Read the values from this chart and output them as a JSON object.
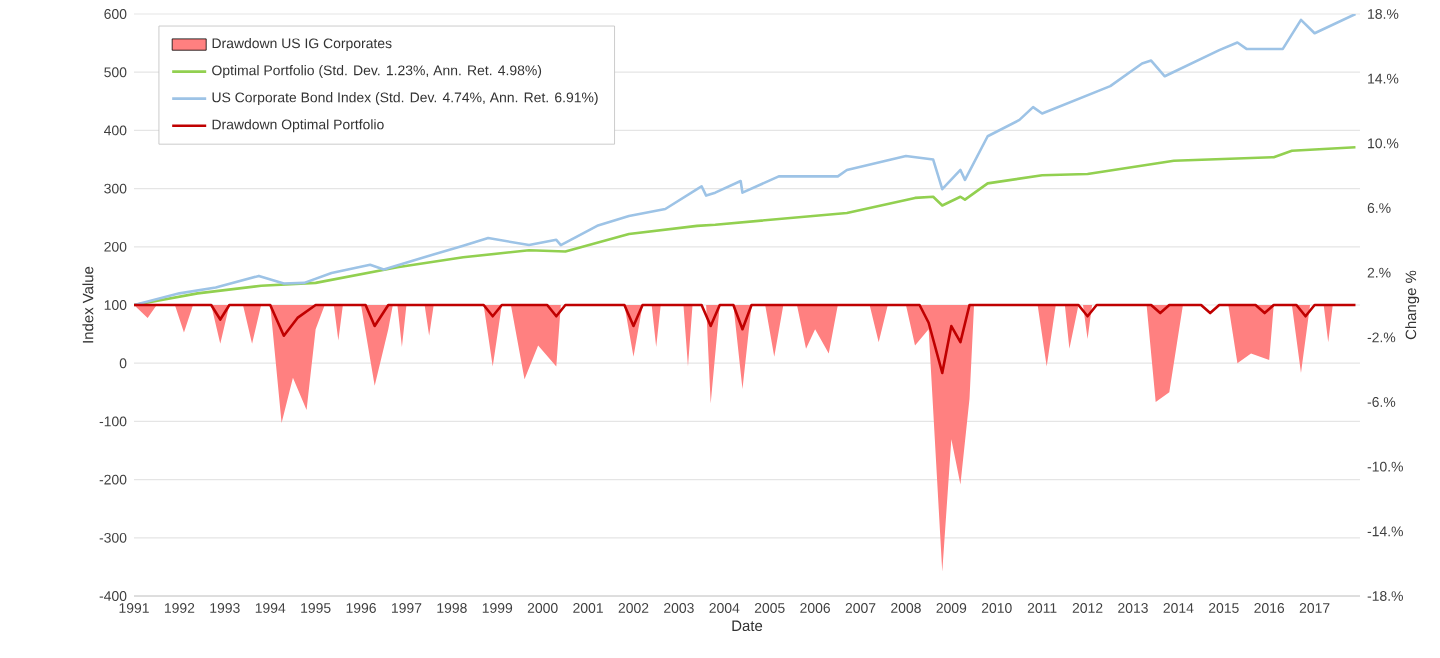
{
  "chart_data": {
    "type": "line",
    "xlabel": "Date",
    "ylabel": "Index Value",
    "y2label": "Change %",
    "xlim": [
      1991,
      2018
    ],
    "xticks": [
      1991,
      1992,
      1993,
      1994,
      1995,
      1996,
      1997,
      1998,
      1999,
      2000,
      2001,
      2002,
      2003,
      2004,
      2005,
      2006,
      2007,
      2008,
      2009,
      2010,
      2011,
      2012,
      2013,
      2014,
      2015,
      2016,
      2017
    ],
    "ylim": [
      -400,
      600
    ],
    "yticks": [
      -400,
      -300,
      -200,
      -100,
      0,
      100,
      200,
      300,
      400,
      500,
      600
    ],
    "y2lim": [
      -18,
      18
    ],
    "y2ticks": [
      {
        "value": -18,
        "label": "-18.%"
      },
      {
        "value": -14,
        "label": "-14.%"
      },
      {
        "value": -10,
        "label": "-10.%"
      },
      {
        "value": -6,
        "label": "-6.%"
      },
      {
        "value": -2,
        "label": "-2.%"
      },
      {
        "value": 2,
        "label": "2.%"
      },
      {
        "value": 6,
        "label": "6.%"
      },
      {
        "value": 10,
        "label": "10.%"
      },
      {
        "value": 14,
        "label": "14.%"
      },
      {
        "value": 18,
        "label": "18.%"
      }
    ],
    "grid": "y",
    "legend": "top left",
    "series": [
      {
        "name": "Drawdown US IG Corporates",
        "type": "area",
        "axis": "y2",
        "color": "#ff8080",
        "x": [
          1991.0,
          1991.3,
          1991.5,
          1991.9,
          1992.1,
          1992.3,
          1992.7,
          1992.9,
          1993.1,
          1993.4,
          1993.6,
          1993.8,
          1994.0,
          1994.25,
          1994.5,
          1994.8,
          1995.0,
          1995.2,
          1995.4,
          1995.5,
          1995.6,
          1996.0,
          1996.3,
          1996.6,
          1996.7,
          1996.8,
          1996.9,
          1997.0,
          1997.4,
          1997.5,
          1997.6,
          1998.7,
          1998.9,
          1999.1,
          1999.3,
          1999.6,
          1999.9,
          2000.3,
          2000.4,
          2001.8,
          2002.0,
          2002.2,
          2002.4,
          2002.5,
          2002.6,
          2003.1,
          2003.2,
          2003.3,
          2003.6,
          2003.7,
          2003.9,
          2004.2,
          2004.4,
          2004.6,
          2004.9,
          2005.1,
          2005.3,
          2005.6,
          2005.8,
          2006.0,
          2006.3,
          2006.5,
          2007.2,
          2007.4,
          2007.6,
          2008.0,
          2008.2,
          2008.5,
          2008.8,
          2009.0,
          2009.2,
          2009.4,
          2009.5,
          2010.9,
          2011.1,
          2011.3,
          2011.5,
          2011.6,
          2011.8,
          2011.9,
          2012.0,
          2012.1,
          2013.3,
          2013.5,
          2013.8,
          2014.1,
          2015.1,
          2015.3,
          2015.6,
          2016.0,
          2016.1,
          2016.5,
          2016.7,
          2016.9,
          2017.2,
          2017.3,
          2017.4,
          2017.9
        ],
        "values": [
          0,
          -0.8,
          0,
          0,
          -1.7,
          0,
          0,
          -2.4,
          0,
          0,
          -2.4,
          0,
          0,
          -7.3,
          -4.5,
          -6.5,
          -1.5,
          0,
          0,
          -2.2,
          0,
          0,
          -5.0,
          -1.5,
          0,
          0,
          -2.6,
          0,
          0,
          -1.9,
          0,
          0,
          -3.8,
          0,
          0,
          -4.6,
          -2.5,
          -3.8,
          0,
          0,
          -3.2,
          0,
          0,
          -2.6,
          0,
          0,
          -3.8,
          0,
          0,
          -6.1,
          0,
          0,
          -5.2,
          0,
          0,
          -3.2,
          0,
          0,
          -2.7,
          -1.5,
          -3.0,
          0,
          0,
          -2.3,
          0,
          0,
          -2.5,
          -1.5,
          -16.5,
          -8.3,
          -11.1,
          -5.8,
          0,
          0,
          -3.8,
          0,
          0,
          -2.7,
          0,
          0,
          -2.1,
          0,
          0,
          -6.0,
          -5.4,
          0,
          0,
          -3.6,
          -3.0,
          -3.4,
          0,
          0,
          -4.2,
          0,
          0,
          -2.3,
          0,
          0
        ]
      },
      {
        "name": "Optimal Portfolio (Std. Dev. 1.23%, Ann. Ret. 4.98%)",
        "color": "#92d050",
        "x": [
          1991.0,
          1992.4,
          1993.8,
          1995.0,
          1996.8,
          1998.25,
          1999.7,
          2000.5,
          2001.9,
          2003.4,
          2003.8,
          2006.7,
          2008.2,
          2008.6,
          2008.8,
          2009.2,
          2009.3,
          2009.8,
          2011.0,
          2012.0,
          2013.9,
          2016.1,
          2016.5,
          2017.9
        ],
        "values": [
          100,
          120,
          133,
          138,
          165,
          182,
          194,
          192,
          222,
          236,
          238,
          258,
          284,
          286,
          271,
          286,
          281,
          309,
          323,
          325,
          348,
          354,
          365,
          371
        ]
      },
      {
        "name": "US Corporate Bond Index (Std. Dev. 4.74%, Ann. Ret. 6.91%)",
        "color": "#9dc3e6",
        "x": [
          1991.0,
          1992.0,
          1992.8,
          1993.75,
          1994.3,
          1994.75,
          1995.35,
          1996.2,
          1996.5,
          1997.3,
          1998.25,
          1998.8,
          1999.7,
          2000.3,
          2000.4,
          2001.2,
          2001.9,
          2002.7,
          2003.4,
          2003.5,
          2003.6,
          2003.8,
          2004.36,
          2004.4,
          2005.2,
          2006.5,
          2006.7,
          2008.0,
          2008.6,
          2008.8,
          2009.2,
          2009.3,
          2009.8,
          2010.5,
          2010.8,
          2011.0,
          2012.5,
          2013.2,
          2013.4,
          2013.7,
          2014.9,
          2015.3,
          2015.5,
          2016.3,
          2016.7,
          2017.0,
          2017.9
        ],
        "values": [
          100,
          120,
          130,
          150,
          137,
          138,
          155,
          169,
          161,
          180,
          202,
          215,
          203,
          212,
          203,
          236,
          253,
          265,
          299,
          304,
          288,
          293,
          313,
          293,
          321,
          321,
          332,
          356,
          350,
          299,
          332,
          315,
          390,
          418,
          440,
          429,
          476,
          515,
          520,
          493,
          538,
          551,
          540,
          540,
          590,
          567,
          600
        ]
      },
      {
        "name": "Drawdown Optimal Portfolio",
        "axis": "y2",
        "color": "#c00000",
        "x": [
          1991.0,
          1992.7,
          1992.9,
          1993.1,
          1994.0,
          1994.3,
          1994.6,
          1995.0,
          1996.1,
          1996.3,
          1996.6,
          1998.7,
          1998.9,
          1999.1,
          2000.1,
          2000.3,
          2000.5,
          2001.8,
          2002.0,
          2002.2,
          2003.5,
          2003.7,
          2003.9,
          2004.2,
          2004.4,
          2004.6,
          2008.3,
          2008.5,
          2008.8,
          2009.0,
          2009.2,
          2009.4,
          2011.8,
          2012.0,
          2012.2,
          2013.4,
          2013.6,
          2013.8,
          2014.5,
          2014.7,
          2014.9,
          2015.7,
          2015.9,
          2016.1,
          2016.6,
          2016.8,
          2017.0,
          2017.9
        ],
        "values": [
          0,
          0,
          -0.9,
          0,
          0,
          -1.9,
          -0.8,
          0,
          0,
          -1.3,
          0,
          0,
          -0.7,
          0,
          0,
          -0.7,
          0,
          0,
          -1.3,
          0,
          0,
          -1.3,
          0,
          0,
          -1.5,
          0,
          0,
          -1.1,
          -4.2,
          -1.3,
          -2.3,
          0,
          0,
          -0.7,
          0,
          0,
          -0.5,
          0,
          0,
          -0.5,
          0,
          0,
          -0.5,
          0,
          0,
          -0.7,
          0,
          0
        ]
      }
    ]
  }
}
